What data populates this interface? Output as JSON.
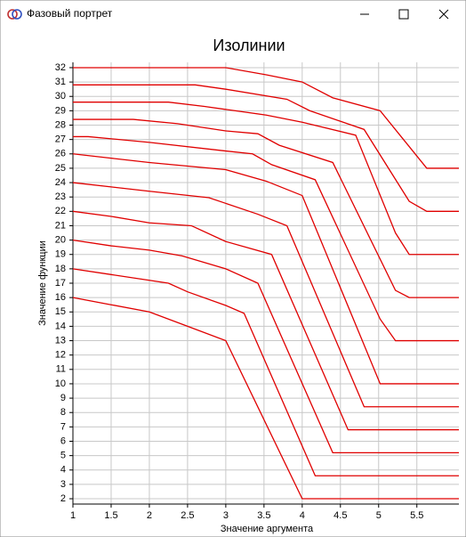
{
  "window": {
    "title": "Фазовый портрет"
  },
  "chart_data": {
    "type": "line",
    "title": "Изолинии",
    "xlabel": "Значение аргумента",
    "ylabel": "Значение функции",
    "xlim": [
      1,
      6.05
    ],
    "ylim": [
      1.63,
      32.37
    ],
    "xticks": [
      1,
      1.5,
      2,
      2.5,
      3,
      3.5,
      4,
      4.5,
      5,
      5.5
    ],
    "yticks": [
      2,
      3,
      4,
      5,
      6,
      7,
      8,
      9,
      10,
      11,
      12,
      13,
      14,
      15,
      16,
      17,
      18,
      19,
      20,
      21,
      22,
      23,
      24,
      25,
      26,
      27,
      28,
      29,
      30,
      31,
      32
    ],
    "grid": true,
    "series": [
      {
        "color": "#e00000",
        "x": [
          1,
          1.5,
          2,
          2.5,
          3,
          4,
          6.05
        ],
        "values": [
          16,
          15.5,
          15,
          14,
          13,
          2,
          2
        ]
      },
      {
        "color": "#e00000",
        "x": [
          1,
          1.5,
          2,
          2.25,
          2.5,
          3,
          3.24,
          4.17,
          6.05
        ],
        "values": [
          18,
          17.6,
          17.2,
          17,
          16.4,
          15.45,
          14.9,
          3.6,
          3.6
        ]
      },
      {
        "color": "#e00000",
        "x": [
          1,
          1.5,
          2,
          2.43,
          3,
          3.42,
          4.4,
          6.05
        ],
        "values": [
          20,
          19.6,
          19.3,
          18.9,
          18,
          17,
          5.2,
          5.2
        ]
      },
      {
        "color": "#e00000",
        "x": [
          1,
          1.5,
          2,
          2.55,
          3,
          3.6,
          4.6,
          6.05
        ],
        "values": [
          22,
          21.65,
          21.2,
          21,
          19.9,
          19,
          6.8,
          6.8
        ]
      },
      {
        "color": "#e00000",
        "x": [
          1,
          1.5,
          2,
          2.78,
          3.42,
          3.8,
          4.81,
          6.05
        ],
        "values": [
          24,
          23.7,
          23.4,
          22.95,
          21.8,
          21,
          8.4,
          8.4
        ]
      },
      {
        "color": "#e00000",
        "x": [
          1,
          1.5,
          2,
          3,
          3.53,
          4,
          5.02,
          6.05
        ],
        "values": [
          26,
          25.7,
          25.4,
          24.9,
          24.1,
          23.1,
          10,
          10
        ]
      },
      {
        "color": "#e00000",
        "x": [
          1,
          1.2,
          2,
          3,
          3.35,
          3.6,
          4.17,
          5.02,
          5.22,
          6.05
        ],
        "values": [
          27.2,
          27.2,
          26.8,
          26.2,
          26,
          25.25,
          24.2,
          14.5,
          13,
          13
        ]
      },
      {
        "color": "#e00000",
        "x": [
          1,
          1.79,
          2.37,
          3,
          3.42,
          3.7,
          4.4,
          5.22,
          5.4,
          6.05
        ],
        "values": [
          28.4,
          28.4,
          28.1,
          27.6,
          27.4,
          26.6,
          25.4,
          16.5,
          16,
          16
        ]
      },
      {
        "color": "#e00000",
        "x": [
          1,
          2.25,
          2.72,
          3.53,
          4,
          4.7,
          5.22,
          5.4,
          6.05
        ],
        "values": [
          29.6,
          29.6,
          29.3,
          28.7,
          28.2,
          27.3,
          20.5,
          19,
          19
        ]
      },
      {
        "color": "#e00000",
        "x": [
          1,
          2.6,
          3,
          3.8,
          4.1,
          4.81,
          5.4,
          5.63,
          6.05
        ],
        "values": [
          30.8,
          30.8,
          30.5,
          29.8,
          29,
          27.7,
          22.7,
          22,
          22
        ]
      },
      {
        "color": "#e00000",
        "x": [
          1,
          3,
          3.53,
          4,
          4.4,
          5.02,
          5.63,
          6.05
        ],
        "values": [
          32,
          32,
          31.5,
          31,
          29.9,
          29,
          25,
          25
        ]
      }
    ]
  }
}
